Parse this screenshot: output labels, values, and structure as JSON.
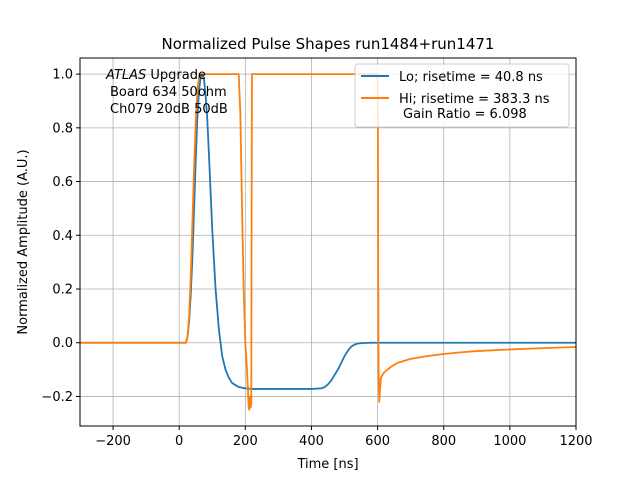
{
  "chart_data": {
    "type": "line",
    "title": "Normalized Pulse Shapes run1484+run1471",
    "xlabel": "Time [ns]",
    "ylabel": "Normalized Amplitude (A.U.)",
    "xlim": [
      -300,
      1200
    ],
    "ylim": [
      -0.31,
      1.06
    ],
    "xticks": [
      -200,
      0,
      200,
      400,
      600,
      800,
      1000,
      1200
    ],
    "yticks": [
      -0.2,
      0.0,
      0.2,
      0.4,
      0.6,
      0.8,
      1.0
    ],
    "xtick_labels": [
      "−200",
      "0",
      "200",
      "400",
      "600",
      "800",
      "1000",
      "1200"
    ],
    "ytick_labels": [
      "−0.2",
      "0.0",
      "0.2",
      "0.4",
      "0.6",
      "0.8",
      "1.0"
    ],
    "grid": true,
    "legend_position": "top-right",
    "annotation": {
      "italic": "ATLAS",
      "rest": " Upgrade",
      "line2": "Board 634 50ohm",
      "line3": "Ch079 20dB 50dB"
    },
    "series": [
      {
        "name": "Lo; risetime = 40.8 ns",
        "color": "#1f77b4",
        "x": [
          -300,
          0,
          20,
          25,
          30,
          35,
          40,
          45,
          50,
          55,
          60,
          65,
          70,
          75,
          80,
          85,
          90,
          95,
          100,
          110,
          120,
          130,
          140,
          150,
          160,
          180,
          200,
          220,
          300,
          400,
          430,
          440,
          450,
          460,
          470,
          480,
          490,
          500,
          510,
          520,
          530,
          540,
          560,
          580,
          600,
          700,
          800,
          900,
          1000,
          1100,
          1200
        ],
        "y": [
          0,
          0,
          0,
          0.02,
          0.08,
          0.18,
          0.32,
          0.5,
          0.68,
          0.84,
          0.94,
          0.99,
          1.0,
          0.98,
          0.92,
          0.83,
          0.7,
          0.56,
          0.42,
          0.2,
          0.05,
          -0.05,
          -0.1,
          -0.13,
          -0.15,
          -0.165,
          -0.17,
          -0.172,
          -0.172,
          -0.172,
          -0.17,
          -0.165,
          -0.155,
          -0.14,
          -0.12,
          -0.1,
          -0.075,
          -0.05,
          -0.03,
          -0.015,
          -0.007,
          -0.003,
          -0.001,
          0,
          0,
          0,
          0,
          0,
          0,
          0,
          0
        ]
      },
      {
        "name": "Hi; risetime = 383.3 ns",
        "name_line2": "Gain Ratio = 6.098",
        "color": "#ff7f0e",
        "x": [
          -300,
          0,
          20,
          25,
          30,
          35,
          40,
          45,
          50,
          55,
          60,
          65,
          70,
          180,
          185,
          190,
          195,
          200,
          205,
          208,
          210,
          212,
          214,
          216,
          218,
          219,
          220,
          221,
          600,
          601,
          602,
          603,
          605,
          610,
          620,
          640,
          660,
          700,
          750,
          800,
          850,
          900,
          1000,
          1100,
          1200
        ],
        "y": [
          0,
          0,
          0,
          0.02,
          0.1,
          0.25,
          0.45,
          0.65,
          0.82,
          0.94,
          0.99,
          1.0,
          1.0,
          1.0,
          0.85,
          0.5,
          0.2,
          0.0,
          -0.1,
          -0.18,
          -0.24,
          -0.25,
          -0.2,
          -0.24,
          -0.23,
          0.5,
          1.0,
          1.0,
          1.0,
          0.8,
          0.2,
          -0.1,
          -0.22,
          -0.13,
          -0.11,
          -0.09,
          -0.075,
          -0.06,
          -0.05,
          -0.042,
          -0.036,
          -0.031,
          -0.025,
          -0.02,
          -0.016
        ]
      }
    ]
  }
}
